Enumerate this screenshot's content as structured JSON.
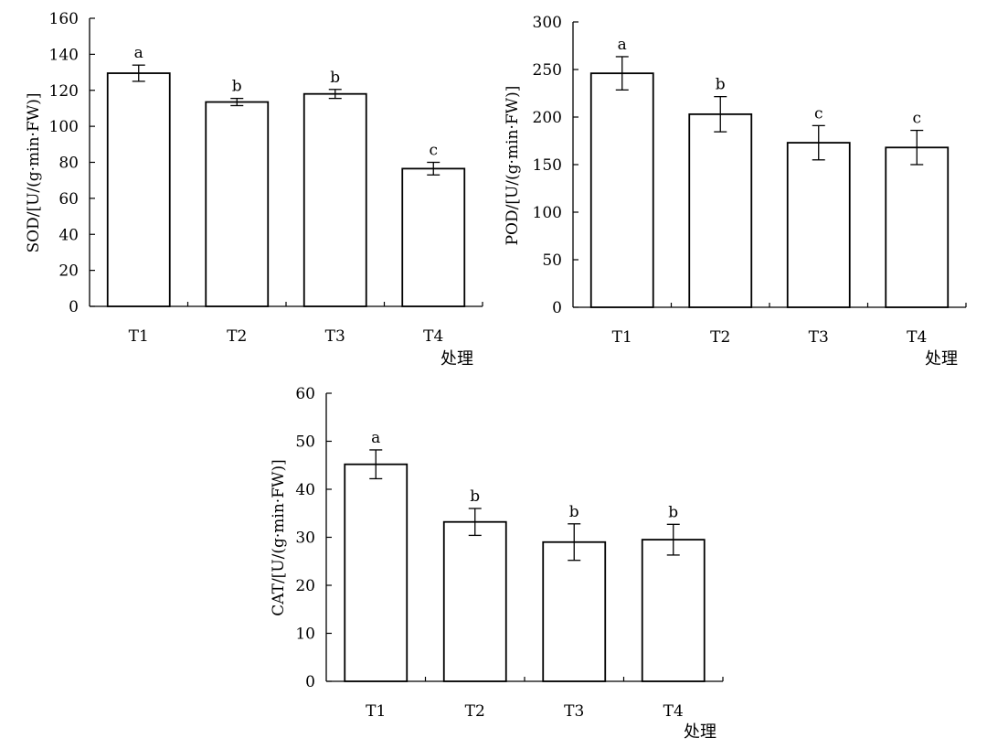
{
  "chart_data": [
    {
      "type": "bar",
      "categories": [
        "T1",
        "T2",
        "T3",
        "T4"
      ],
      "values": [
        129.5,
        113.5,
        118.0,
        76.5
      ],
      "errors": [
        4.5,
        2.0,
        2.5,
        3.5
      ],
      "significance": [
        "a",
        "b",
        "b",
        "c"
      ],
      "ylabel": "SOD/[U/(g·min·FW)]",
      "xlabel": "处理",
      "ylim": [
        0,
        160
      ],
      "yticks": [
        "0",
        "20",
        "40",
        "60",
        "80",
        "100",
        "120",
        "140",
        "160"
      ],
      "grid": false
    },
    {
      "type": "bar",
      "categories": [
        "T1",
        "T2",
        "T3",
        "T4"
      ],
      "values": [
        246,
        203,
        173,
        168
      ],
      "errors": [
        17.5,
        18.5,
        18.0,
        18.0
      ],
      "significance": [
        "a",
        "b",
        "c",
        "c"
      ],
      "ylabel": "POD/[U/(g·min·FW)]",
      "xlabel": "处理",
      "ylim": [
        0,
        300
      ],
      "yticks": [
        "0",
        "50",
        "100",
        "150",
        "200",
        "250",
        "300"
      ],
      "grid": false
    },
    {
      "type": "bar",
      "categories": [
        "T1",
        "T2",
        "T3",
        "T4"
      ],
      "values": [
        45.2,
        33.2,
        29.0,
        29.5
      ],
      "errors": [
        3.0,
        2.8,
        3.8,
        3.2
      ],
      "significance": [
        "a",
        "b",
        "b",
        "b"
      ],
      "ylabel": "CAT/[U/(g·min·FW)]",
      "xlabel": "处理",
      "ylim": [
        0,
        60
      ],
      "yticks": [
        "0",
        "10",
        "20",
        "30",
        "40",
        "50",
        "60"
      ],
      "grid": false
    }
  ]
}
